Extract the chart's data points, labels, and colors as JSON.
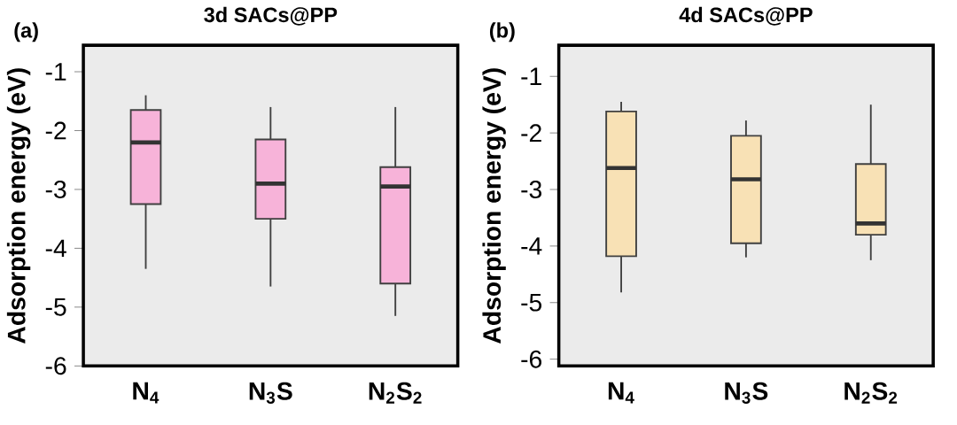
{
  "chart_data": [
    {
      "type": "box",
      "title": "3d SACs@PP",
      "ylabel": "Adsorption energy (eV)",
      "annotations": [
        "(a)"
      ],
      "categories": [
        "N$_{4}$",
        "N$_{3}$S",
        "N$_{2}$S$_{2}$"
      ],
      "series": [
        {
          "color": "#f7b3d9",
          "boxes": [
            {
              "low": -4.35,
              "q1": -3.25,
              "median": -2.2,
              "q3": -1.65,
              "high": -1.4
            },
            {
              "low": -4.65,
              "q1": -3.5,
              "median": -2.9,
              "q3": -2.15,
              "high": -1.6
            },
            {
              "low": -5.15,
              "q1": -4.6,
              "median": -2.95,
              "q3": -2.62,
              "high": -1.6
            }
          ]
        }
      ],
      "ylim": [
        -6,
        -0.55
      ],
      "yticks": [
        -6,
        -5,
        -4,
        -3,
        -2,
        -1
      ],
      "grid": false
    },
    {
      "type": "box",
      "title": "4d SACs@PP",
      "ylabel": "Adsorption energy (eV)",
      "annotations": [
        "(b)"
      ],
      "categories": [
        "N$_{4}$",
        "N$_{3}$S",
        "N$_{2}$S$_{2}$"
      ],
      "series": [
        {
          "color": "#f8e1b5",
          "boxes": [
            {
              "low": -4.82,
              "q1": -4.18,
              "median": -2.62,
              "q3": -1.62,
              "high": -1.45
            },
            {
              "low": -4.2,
              "q1": -3.95,
              "median": -2.82,
              "q3": -2.05,
              "high": -1.78
            },
            {
              "low": -4.25,
              "q1": -3.8,
              "median": -3.6,
              "q3": -2.55,
              "high": -1.5
            }
          ]
        }
      ],
      "ylim": [
        -6.12,
        -0.45
      ],
      "yticks": [
        -6,
        -5,
        -4,
        -3,
        -2,
        -1
      ],
      "grid": false
    }
  ]
}
